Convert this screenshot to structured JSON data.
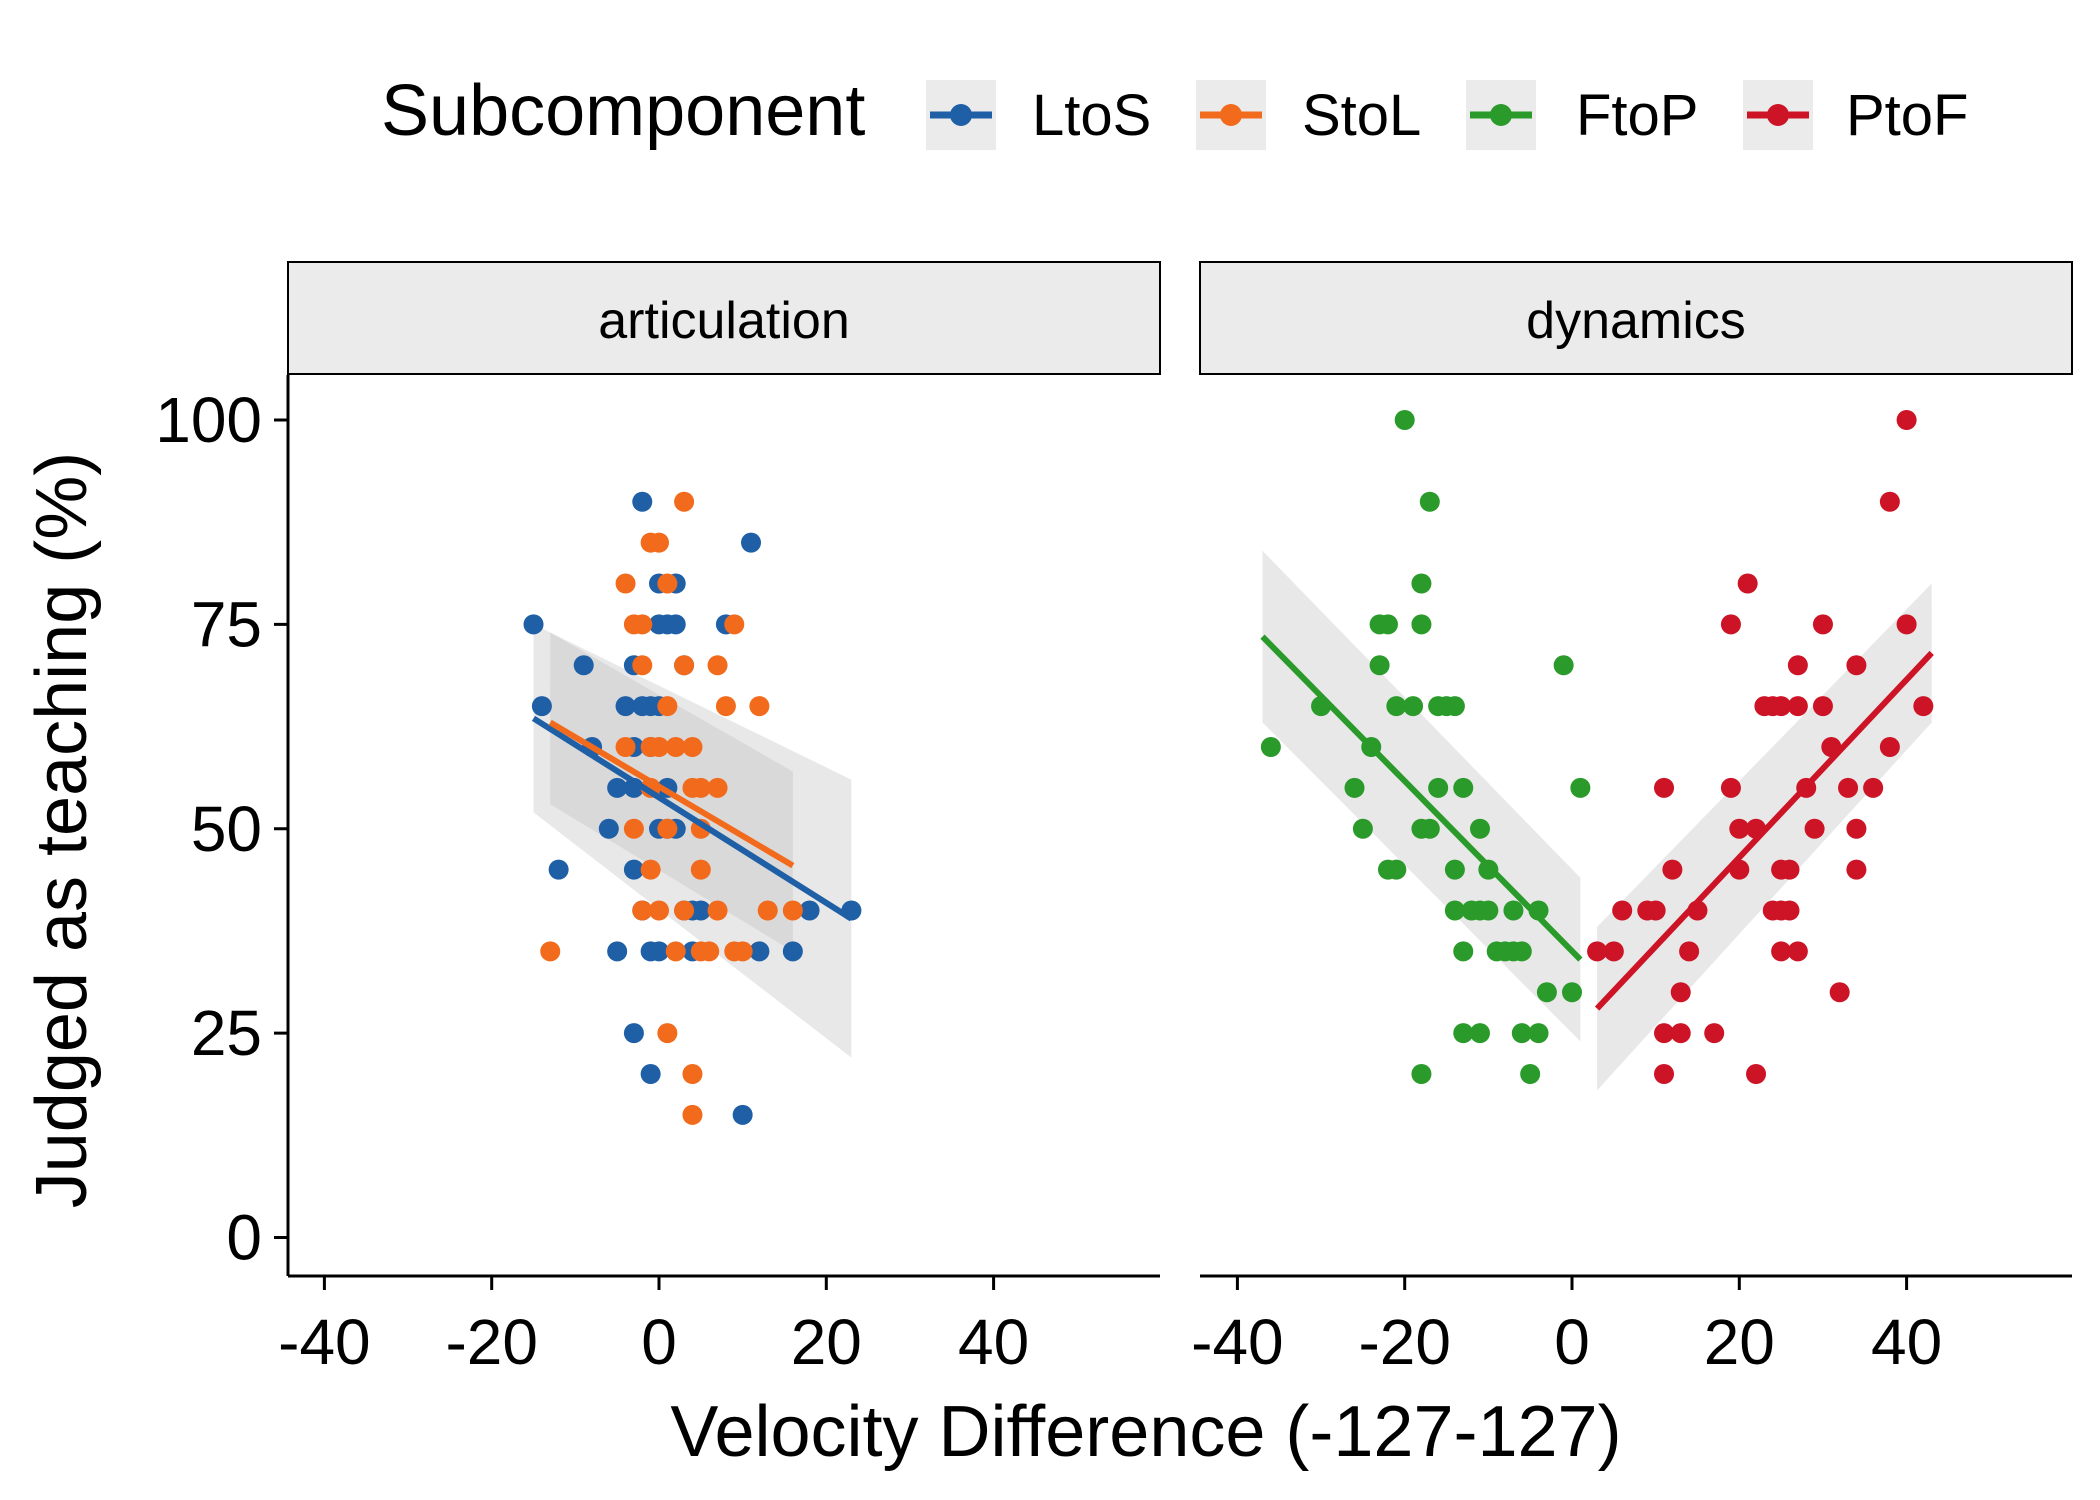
{
  "chart_data": {
    "type": "scatter",
    "title": "",
    "xlabel": "Velocity Difference (-127-127)",
    "ylabel": "Judged as teaching (%)",
    "xlim": [
      -45,
      60
    ],
    "ylim": [
      -5,
      105
    ],
    "xticks": [
      -40,
      -20,
      0,
      20,
      40
    ],
    "yticks": [
      0,
      25,
      50,
      75,
      100
    ],
    "grid": false,
    "legend": {
      "title": "Subcomponent",
      "placement": "top",
      "entries": [
        {
          "name": "LtoS",
          "color": "#1f5fa6"
        },
        {
          "name": "StoL",
          "color": "#f26a1b"
        },
        {
          "name": "FtoP",
          "color": "#2a9a2a"
        },
        {
          "name": "PtoF",
          "color": "#cc1426"
        }
      ]
    },
    "panels": [
      {
        "name": "articulation",
        "series": [
          {
            "name": "LtoS",
            "color": "#1f5fa6",
            "points": [
              [
                -15,
                75
              ],
              [
                -14,
                65
              ],
              [
                -12,
                45
              ],
              [
                -9,
                70
              ],
              [
                -8,
                60
              ],
              [
                -6,
                50
              ],
              [
                -5,
                55
              ],
              [
                -5,
                35
              ],
              [
                -4,
                65
              ],
              [
                -3,
                25
              ],
              [
                -3,
                70
              ],
              [
                -3,
                60
              ],
              [
                -3,
                45
              ],
              [
                -3,
                55
              ],
              [
                -2,
                90
              ],
              [
                -2,
                65
              ],
              [
                -2,
                40
              ],
              [
                -1,
                65
              ],
              [
                -1,
                20
              ],
              [
                -1,
                60
              ],
              [
                -1,
                35
              ],
              [
                0,
                80
              ],
              [
                0,
                75
              ],
              [
                0,
                65
              ],
              [
                0,
                50
              ],
              [
                0,
                35
              ],
              [
                1,
                75
              ],
              [
                1,
                55
              ],
              [
                1,
                50
              ],
              [
                2,
                80
              ],
              [
                2,
                75
              ],
              [
                2,
                50
              ],
              [
                3,
                70
              ],
              [
                3,
                40
              ],
              [
                4,
                40
              ],
              [
                4,
                35
              ],
              [
                5,
                40
              ],
              [
                8,
                75
              ],
              [
                10,
                15
              ],
              [
                11,
                85
              ],
              [
                12,
                35
              ],
              [
                16,
                35
              ],
              [
                18,
                40
              ],
              [
                23,
                40
              ]
            ]
          },
          {
            "name": "StoL",
            "color": "#f26a1b",
            "points": [
              [
                -13,
                35
              ],
              [
                -4,
                80
              ],
              [
                -4,
                60
              ],
              [
                -3,
                75
              ],
              [
                -3,
                50
              ],
              [
                -2,
                70
              ],
              [
                -2,
                75
              ],
              [
                -2,
                40
              ],
              [
                -1,
                85
              ],
              [
                -1,
                55
              ],
              [
                -1,
                60
              ],
              [
                -1,
                45
              ],
              [
                0,
                85
              ],
              [
                0,
                40
              ],
              [
                0,
                60
              ],
              [
                1,
                25
              ],
              [
                1,
                80
              ],
              [
                1,
                65
              ],
              [
                1,
                50
              ],
              [
                2,
                60
              ],
              [
                2,
                35
              ],
              [
                3,
                90
              ],
              [
                3,
                70
              ],
              [
                3,
                40
              ],
              [
                4,
                60
              ],
              [
                4,
                20
              ],
              [
                4,
                15
              ],
              [
                4,
                55
              ],
              [
                5,
                45
              ],
              [
                5,
                55
              ],
              [
                5,
                50
              ],
              [
                5,
                35
              ],
              [
                6,
                35
              ],
              [
                7,
                70
              ],
              [
                7,
                55
              ],
              [
                7,
                40
              ],
              [
                8,
                65
              ],
              [
                9,
                75
              ],
              [
                9,
                35
              ],
              [
                10,
                35
              ],
              [
                12,
                65
              ],
              [
                13,
                40
              ],
              [
                16,
                40
              ]
            ]
          }
        ],
        "fits": [
          {
            "series": "LtoS",
            "x": [
              -15,
              23
            ],
            "y": [
              63.5,
              39
            ],
            "band_lo": [
              52,
              22
            ],
            "band_hi": [
              75,
              56
            ]
          },
          {
            "series": "StoL",
            "x": [
              -13,
              16
            ],
            "y": [
              63,
              45.5
            ],
            "band_lo": [
              53,
              35
            ],
            "band_hi": [
              74,
              57
            ]
          }
        ]
      },
      {
        "name": "dynamics",
        "series": [
          {
            "name": "FtoP",
            "color": "#2a9a2a",
            "points": [
              [
                -36,
                60
              ],
              [
                -30,
                65
              ],
              [
                -26,
                55
              ],
              [
                -25,
                50
              ],
              [
                -24,
                60
              ],
              [
                -23,
                70
              ],
              [
                -23,
                75
              ],
              [
                -22,
                75
              ],
              [
                -22,
                45
              ],
              [
                -21,
                45
              ],
              [
                -21,
                65
              ],
              [
                -20,
                100
              ],
              [
                -19,
                65
              ],
              [
                -18,
                80
              ],
              [
                -18,
                75
              ],
              [
                -18,
                50
              ],
              [
                -18,
                20
              ],
              [
                -17,
                90
              ],
              [
                -17,
                50
              ],
              [
                -16,
                65
              ],
              [
                -16,
                55
              ],
              [
                -15,
                65
              ],
              [
                -14,
                65
              ],
              [
                -14,
                45
              ],
              [
                -14,
                40
              ],
              [
                -13,
                55
              ],
              [
                -13,
                35
              ],
              [
                -13,
                25
              ],
              [
                -12,
                40
              ],
              [
                -11,
                50
              ],
              [
                -11,
                40
              ],
              [
                -11,
                25
              ],
              [
                -10,
                45
              ],
              [
                -10,
                40
              ],
              [
                -9,
                35
              ],
              [
                -8,
                35
              ],
              [
                -7,
                40
              ],
              [
                -7,
                35
              ],
              [
                -6,
                35
              ],
              [
                -6,
                25
              ],
              [
                -5,
                20
              ],
              [
                -4,
                40
              ],
              [
                -4,
                25
              ],
              [
                -3,
                30
              ],
              [
                -1,
                70
              ],
              [
                0,
                30
              ],
              [
                1,
                55
              ]
            ]
          },
          {
            "name": "PtoF",
            "color": "#cc1426",
            "points": [
              [
                3,
                35
              ],
              [
                5,
                35
              ],
              [
                6,
                40
              ],
              [
                9,
                40
              ],
              [
                10,
                40
              ],
              [
                11,
                55
              ],
              [
                11,
                25
              ],
              [
                11,
                20
              ],
              [
                12,
                45
              ],
              [
                13,
                30
              ],
              [
                13,
                25
              ],
              [
                14,
                35
              ],
              [
                15,
                40
              ],
              [
                17,
                25
              ],
              [
                19,
                75
              ],
              [
                19,
                55
              ],
              [
                20,
                45
              ],
              [
                20,
                50
              ],
              [
                21,
                80
              ],
              [
                22,
                50
              ],
              [
                22,
                20
              ],
              [
                23,
                65
              ],
              [
                24,
                65
              ],
              [
                24,
                40
              ],
              [
                25,
                45
              ],
              [
                25,
                65
              ],
              [
                25,
                40
              ],
              [
                25,
                35
              ],
              [
                26,
                45
              ],
              [
                26,
                40
              ],
              [
                27,
                70
              ],
              [
                27,
                65
              ],
              [
                27,
                35
              ],
              [
                28,
                55
              ],
              [
                29,
                50
              ],
              [
                30,
                75
              ],
              [
                30,
                65
              ],
              [
                31,
                60
              ],
              [
                32,
                30
              ],
              [
                33,
                55
              ],
              [
                34,
                70
              ],
              [
                34,
                50
              ],
              [
                34,
                45
              ],
              [
                36,
                55
              ],
              [
                38,
                60
              ],
              [
                38,
                90
              ],
              [
                40,
                100
              ],
              [
                40,
                75
              ],
              [
                42,
                65
              ]
            ]
          }
        ],
        "fits": [
          {
            "series": "FtoP",
            "x": [
              -37,
              1
            ],
            "y": [
              73.5,
              34
            ],
            "band_lo": [
              63,
              24
            ],
            "band_hi": [
              84,
              44
            ]
          },
          {
            "series": "PtoF",
            "x": [
              3,
              43
            ],
            "y": [
              28,
              71.5
            ],
            "band_lo": [
              18,
              63
            ],
            "band_hi": [
              38,
              80
            ]
          }
        ]
      }
    ]
  }
}
